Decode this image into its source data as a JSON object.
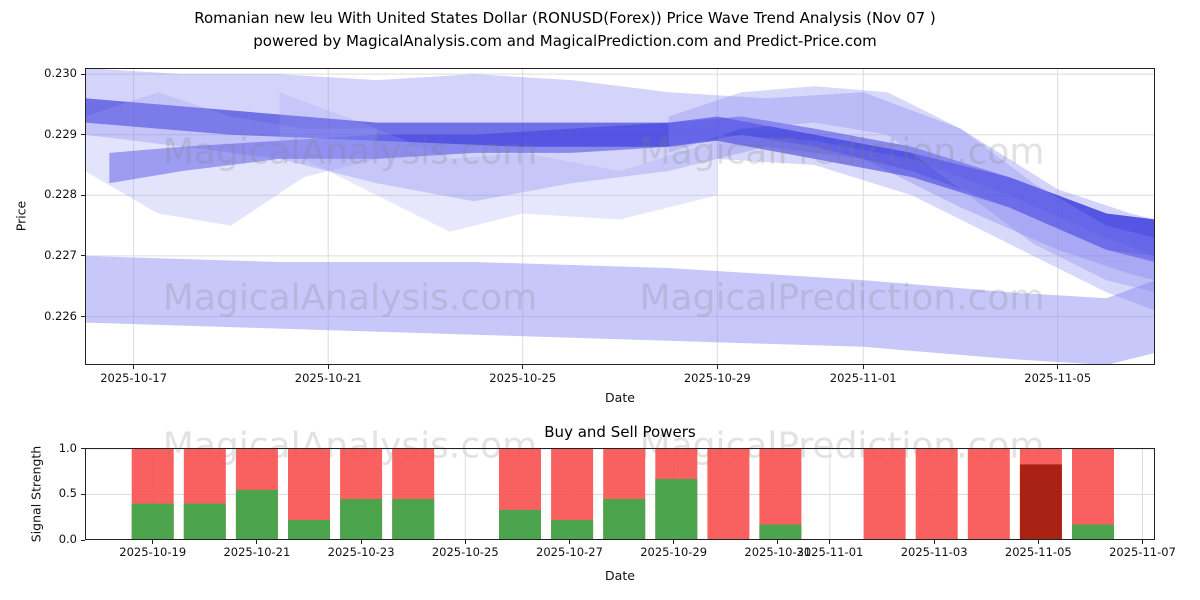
{
  "header": {
    "title_line1": "Romanian new leu With United States Dollar (RONUSD(Forex)) Price Wave Trend Analysis (Nov 07 )",
    "title_line2": "powered by MagicalAnalysis.com and MagicalPrediction.com and Predict-Price.com"
  },
  "watermarks": {
    "left": "MagicalAnalysis.com",
    "right": "MagicalPrediction.com"
  },
  "chart_data": [
    {
      "type": "area",
      "name": "price-wave-trend",
      "title": "",
      "xlabel": "Date",
      "ylabel": "Price",
      "ylim": [
        0.2252,
        0.2301
      ],
      "x_domain_days": [
        0,
        22
      ],
      "grid": true,
      "yticks": [
        0.226,
        0.227,
        0.228,
        0.229,
        0.23
      ],
      "xticks": [
        {
          "label": "2025-10-17",
          "day": 1
        },
        {
          "label": "2025-10-21",
          "day": 5
        },
        {
          "label": "2025-10-25",
          "day": 9
        },
        {
          "label": "2025-10-29",
          "day": 13
        },
        {
          "label": "2025-11-01",
          "day": 16
        },
        {
          "label": "2025-11-05",
          "day": 20
        }
      ],
      "bands": [
        {
          "name": "upper-envelope-light",
          "color": "#7b7bf0",
          "opacity": 0.33,
          "points": [
            [
              0,
              0.229,
              0.2301
            ],
            [
              2,
              0.2288,
              0.23
            ],
            [
              4,
              0.2286,
              0.23
            ],
            [
              6,
              0.2282,
              0.2299
            ],
            [
              8,
              0.2279,
              0.23
            ],
            [
              10,
              0.2282,
              0.2299
            ],
            [
              12,
              0.2284,
              0.2297
            ],
            [
              14,
              0.2288,
              0.2296
            ],
            [
              16,
              0.2286,
              0.2297
            ],
            [
              18,
              0.2278,
              0.2291
            ],
            [
              20,
              0.2271,
              0.2281
            ],
            [
              21.5,
              0.2267,
              0.2277
            ],
            [
              22,
              0.2266,
              0.2276
            ]
          ]
        },
        {
          "name": "main-trend-dark",
          "color": "#2b2bd8",
          "opacity": 0.6,
          "points": [
            [
              0,
              0.2292,
              0.2296
            ],
            [
              3,
              0.229,
              0.2294
            ],
            [
              6,
              0.2289,
              0.2292
            ],
            [
              9,
              0.2288,
              0.2292
            ],
            [
              12,
              0.2288,
              0.2292
            ],
            [
              13,
              0.2289,
              0.2293
            ],
            [
              15,
              0.2286,
              0.229
            ],
            [
              17,
              0.2283,
              0.2287
            ],
            [
              19,
              0.2278,
              0.2283
            ],
            [
              21,
              0.2271,
              0.2277
            ],
            [
              22,
              0.2269,
              0.2276
            ]
          ]
        },
        {
          "name": "secondary-trend-dark",
          "color": "#3b3bdf",
          "opacity": 0.5,
          "points": [
            [
              0.5,
              0.2282,
              0.2287
            ],
            [
              2,
              0.2284,
              0.2288
            ],
            [
              4,
              0.2286,
              0.2289
            ],
            [
              6,
              0.2286,
              0.229
            ],
            [
              8,
              0.2287,
              0.229
            ],
            [
              10,
              0.2287,
              0.2291
            ],
            [
              12,
              0.2288,
              0.2292
            ],
            [
              13.5,
              0.229,
              0.2293
            ],
            [
              15,
              0.2288,
              0.2291
            ],
            [
              17,
              0.2284,
              0.2288
            ],
            [
              19,
              0.2278,
              0.2283
            ],
            [
              21,
              0.2271,
              0.2277
            ],
            [
              22,
              0.227,
              0.2276
            ]
          ]
        },
        {
          "name": "lower-band-light",
          "color": "#8383f2",
          "opacity": 0.45,
          "points": [
            [
              0,
              0.2259,
              0.227
            ],
            [
              4,
              0.2258,
              0.2269
            ],
            [
              8,
              0.2257,
              0.2269
            ],
            [
              12,
              0.2256,
              0.2268
            ],
            [
              16,
              0.2255,
              0.2266
            ],
            [
              19,
              0.2253,
              0.2264
            ],
            [
              21,
              0.2252,
              0.2263
            ],
            [
              22,
              0.2254,
              0.2266
            ]
          ]
        },
        {
          "name": "early-spike-light",
          "color": "#9a9af5",
          "opacity": 0.28,
          "points": [
            [
              0,
              0.2284,
              0.2293
            ],
            [
              1.5,
              0.2277,
              0.2297
            ],
            [
              3,
              0.2275,
              0.2293
            ],
            [
              4.5,
              0.2283,
              0.2291
            ],
            [
              6,
              0.2286,
              0.2291
            ]
          ]
        },
        {
          "name": "mid-dip-light",
          "color": "#9a9af5",
          "opacity": 0.25,
          "points": [
            [
              4,
              0.2288,
              0.2297
            ],
            [
              6,
              0.228,
              0.2291
            ],
            [
              7.5,
              0.2274,
              0.2286
            ],
            [
              9,
              0.2277,
              0.2287
            ],
            [
              11,
              0.2276,
              0.2284
            ],
            [
              13,
              0.228,
              0.2289
            ]
          ]
        },
        {
          "name": "right-hump-light",
          "color": "#8a8af2",
          "opacity": 0.33,
          "points": [
            [
              12,
              0.2287,
              0.2293
            ],
            [
              13.5,
              0.2291,
              0.2297
            ],
            [
              15,
              0.2292,
              0.2298
            ],
            [
              16.5,
              0.229,
              0.2297
            ],
            [
              18,
              0.2281,
              0.2291
            ],
            [
              19.5,
              0.2272,
              0.2282
            ],
            [
              21,
              0.2266,
              0.2275
            ],
            [
              22,
              0.2264,
              0.2273
            ]
          ]
        },
        {
          "name": "fan-down-light",
          "color": "#7d7df0",
          "opacity": 0.3,
          "points": [
            [
              13,
              0.2286,
              0.229
            ],
            [
              15,
              0.2285,
              0.2289
            ],
            [
              17,
              0.228,
              0.2286
            ],
            [
              19,
              0.2272,
              0.228
            ],
            [
              21,
              0.2264,
              0.2273
            ],
            [
              22,
              0.2261,
              0.227
            ]
          ]
        }
      ]
    },
    {
      "type": "bar",
      "name": "buy-sell-powers",
      "title": "Buy and Sell Powers",
      "xlabel": "Date",
      "ylabel": "Signal Strength",
      "ylim": [
        0,
        1.01
      ],
      "x_domain_days": [
        0,
        20.54
      ],
      "grid": true,
      "yticks": [
        0.0,
        0.5,
        1.0
      ],
      "xticks": [
        {
          "label": "2025-10-19",
          "day": 1.3
        },
        {
          "label": "2025-10-21",
          "day": 3.3
        },
        {
          "label": "2025-10-23",
          "day": 5.3
        },
        {
          "label": "2025-10-25",
          "day": 7.3
        },
        {
          "label": "2025-10-27",
          "day": 9.3
        },
        {
          "label": "2025-10-29",
          "day": 11.3
        },
        {
          "label": "2025-10-31",
          "day": 13.3
        },
        {
          "label": "2025-11-01",
          "day": 14.3
        },
        {
          "label": "2025-11-03",
          "day": 16.3
        },
        {
          "label": "2025-11-05",
          "day": 18.3
        },
        {
          "label": "2025-11-07",
          "day": 20.3
        }
      ],
      "colors": {
        "sell": "#f85050",
        "buy": "#42a94c",
        "sell_dark": "#aa2213"
      },
      "bars": [
        {
          "date": "2025-10-19",
          "day": 1.3,
          "sell": 1.0,
          "buy": 0.4
        },
        {
          "date": "2025-10-20",
          "day": 2.3,
          "sell": 1.0,
          "buy": 0.4
        },
        {
          "date": "2025-10-21",
          "day": 3.3,
          "sell": 1.0,
          "buy": 0.55
        },
        {
          "date": "2025-10-22",
          "day": 4.3,
          "sell": 1.0,
          "buy": 0.22
        },
        {
          "date": "2025-10-23",
          "day": 5.3,
          "sell": 1.0,
          "buy": 0.45
        },
        {
          "date": "2025-10-24",
          "day": 6.3,
          "sell": 1.0,
          "buy": 0.45
        },
        {
          "date": "2025-10-26",
          "day": 8.35,
          "sell": 1.0,
          "buy": 0.33
        },
        {
          "date": "2025-10-27",
          "day": 9.35,
          "sell": 1.0,
          "buy": 0.22
        },
        {
          "date": "2025-10-28",
          "day": 10.35,
          "sell": 1.0,
          "buy": 0.45
        },
        {
          "date": "2025-10-29",
          "day": 11.35,
          "sell": 1.0,
          "buy": 0.67
        },
        {
          "date": "2025-10-30",
          "day": 12.35,
          "sell": 1.0,
          "buy": 0
        },
        {
          "date": "2025-10-31",
          "day": 13.35,
          "sell": 1.0,
          "buy": 0.17
        },
        {
          "date": "2025-11-02",
          "day": 15.35,
          "sell": 1.0,
          "buy": 0
        },
        {
          "date": "2025-11-03",
          "day": 16.35,
          "sell": 1.0,
          "buy": 0
        },
        {
          "date": "2025-11-04",
          "day": 17.35,
          "sell": 1.0,
          "buy": 0
        },
        {
          "date": "2025-11-05",
          "day": 18.35,
          "sell": 1.0,
          "buy": 0,
          "sell_dark": 0.83
        },
        {
          "date": "2025-11-06",
          "day": 19.35,
          "sell": 1.0,
          "buy": 0.17
        }
      ]
    }
  ]
}
